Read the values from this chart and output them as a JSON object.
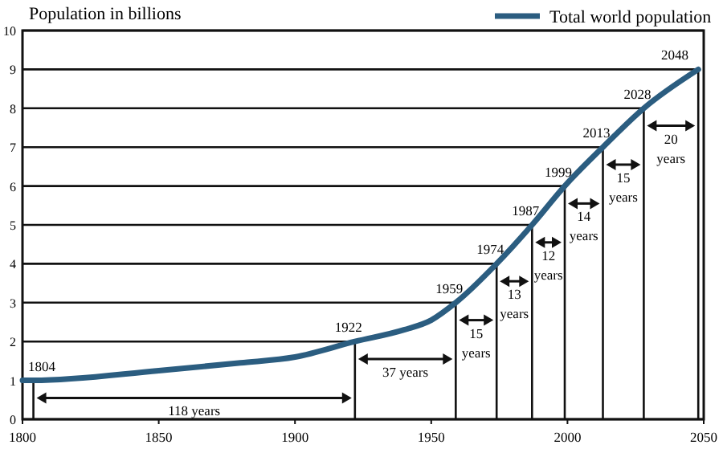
{
  "chart_data": {
    "type": "line",
    "ylabel": "Population in billions",
    "legend": "top right",
    "line_style": "solid",
    "grid": "y",
    "x": [
      1800,
      1804,
      1850,
      1880,
      1900,
      1922,
      1940,
      1950,
      1959,
      1974,
      1987,
      1999,
      2013,
      2028,
      2048
    ],
    "series": [
      {
        "name": "Total world population",
        "color": "#2b5d80",
        "values": [
          1,
          1,
          1.25,
          1.45,
          1.6,
          2,
          2.3,
          2.55,
          3,
          4,
          5,
          6,
          7,
          8,
          9
        ]
      }
    ],
    "xlim": [
      1800,
      2050
    ],
    "xticks": [
      1800,
      1850,
      1900,
      1950,
      2000,
      2050
    ],
    "ylim": [
      0,
      10
    ],
    "yticks": [
      0,
      1,
      2,
      3,
      4,
      5,
      6,
      7,
      8,
      9,
      10
    ],
    "annotations": [
      {
        "text": "1804",
        "x": 1804,
        "y": 1
      },
      {
        "text": "1922",
        "x": 1922,
        "y": 2
      },
      {
        "text": "1959",
        "x": 1959,
        "y": 3
      },
      {
        "text": "1974",
        "x": 1974,
        "y": 4
      },
      {
        "text": "1987",
        "x": 1987,
        "y": 5
      },
      {
        "text": "1999",
        "x": 1999,
        "y": 6
      },
      {
        "text": "2013",
        "x": 2013,
        "y": 7
      },
      {
        "text": "2028",
        "x": 2028,
        "y": 8
      },
      {
        "text": "2048",
        "x": 2048,
        "y": 9
      },
      "118 years",
      "37 years",
      "15 years",
      "13 years",
      "12 years",
      "14 years",
      "15 years",
      "20 years"
    ]
  }
}
